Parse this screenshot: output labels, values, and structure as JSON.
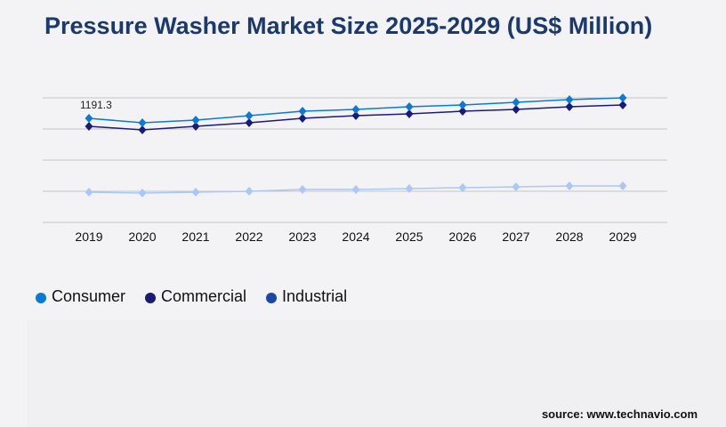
{
  "chart_data": {
    "type": "line",
    "title": "Pressure Washer Market Size 2025-2029 (US$ Million)",
    "categories": [
      "2019",
      "2020",
      "2021",
      "2022",
      "2023",
      "2024",
      "2025",
      "2026",
      "2027",
      "2028",
      "2029"
    ],
    "ylim": [
      0,
      1425
    ],
    "grid": true,
    "legend_position": "bottom-left",
    "series": [
      {
        "name": "Consumer",
        "color": "#0a7ad6",
        "legend_color": "#0a7ad6",
        "values": [
          1191.3,
          1140,
          1170,
          1221,
          1272,
          1293,
          1323,
          1344,
          1374,
          1405,
          1425
        ]
      },
      {
        "name": "Commercial",
        "color": "#1a1a78",
        "legend_color": "#1a1a78",
        "values": [
          1099,
          1059,
          1099,
          1140,
          1191,
          1221,
          1242,
          1272,
          1293,
          1323,
          1344
        ]
      },
      {
        "name": "Industrial",
        "color": "#a8c8f8",
        "legend_color": "#1a47a8",
        "values": [
          346,
          336,
          346,
          356,
          377,
          377,
          387,
          397,
          407,
          417,
          417
        ]
      }
    ],
    "annotations": [
      {
        "series": 0,
        "index": 0,
        "text": "1191.3"
      }
    ]
  },
  "source": "source: www.technavio.com"
}
